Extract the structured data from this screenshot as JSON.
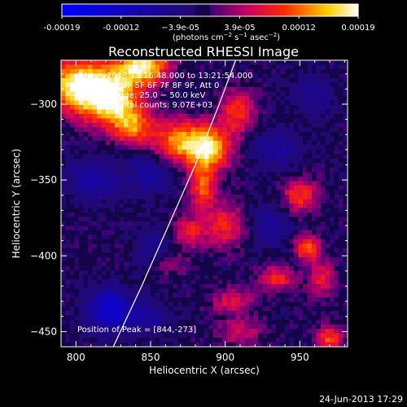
{
  "chart_data": {
    "type": "heatmap",
    "title": "Reconstructed RHESSI Image",
    "xlabel": "Heliocentric X (arcsec)",
    "ylabel": "Heliocentric Y (arcsec)",
    "xlim": [
      790,
      982
    ],
    "ylim": [
      -460,
      -271
    ],
    "xticks": [
      800,
      850,
      900,
      950
    ],
    "yticks": [
      -450,
      -400,
      -350,
      -300
    ],
    "xtick_labels": [
      "800",
      "850",
      "900",
      "950"
    ],
    "ytick_labels": [
      "−450",
      "−400",
      "−350",
      "−300"
    ],
    "colorbar": {
      "range": [
        -0.00019,
        0.00019
      ],
      "tick_labels": [
        "-0.00019",
        "-0.00012",
        "−3.9e-05",
        "3.9e-05",
        "0.00012",
        "0.00019"
      ],
      "unit_text": "(photons cm",
      "unit_exp1": "−2",
      "unit_mid": " s",
      "unit_exp2": "−1",
      "unit_end": " asec",
      "unit_exp3": "−2",
      "unit_close": ")"
    },
    "annotations": {
      "time": "24-Jun-2013 13:16:48.000 to 13:21:54.000",
      "detectors": "Detectors: 3F 5F 6F 7F 8F 9F, Att 0",
      "energy": "Energy Range: 25.0 − 50.0 keV",
      "counts": "Total counts: 9.07E+03",
      "peak": "Position of Peak = [844,-273]"
    },
    "hotspots": [
      {
        "x": 802,
        "y": -287,
        "v": 1.0,
        "sx": 16,
        "sy": 12
      },
      {
        "x": 824,
        "y": -297,
        "v": 0.95,
        "sx": 14,
        "sy": 12
      },
      {
        "x": 845,
        "y": -275,
        "v": 1.0,
        "sx": 12,
        "sy": 8
      },
      {
        "x": 838,
        "y": -315,
        "v": 0.6,
        "sx": 10,
        "sy": 8
      },
      {
        "x": 870,
        "y": -325,
        "v": 0.75,
        "sx": 14,
        "sy": 10
      },
      {
        "x": 890,
        "y": -330,
        "v": 0.8,
        "sx": 10,
        "sy": 10
      },
      {
        "x": 908,
        "y": -305,
        "v": 0.55,
        "sx": 8,
        "sy": 10
      },
      {
        "x": 885,
        "y": -355,
        "v": 0.6,
        "sx": 6,
        "sy": 10
      },
      {
        "x": 875,
        "y": -385,
        "v": 0.45,
        "sx": 8,
        "sy": 8
      },
      {
        "x": 900,
        "y": -380,
        "v": 0.5,
        "sx": 10,
        "sy": 10
      },
      {
        "x": 950,
        "y": -360,
        "v": 0.55,
        "sx": 8,
        "sy": 8
      },
      {
        "x": 955,
        "y": -395,
        "v": 0.65,
        "sx": 6,
        "sy": 6
      },
      {
        "x": 935,
        "y": -415,
        "v": 0.5,
        "sx": 8,
        "sy": 6
      },
      {
        "x": 965,
        "y": -415,
        "v": 0.45,
        "sx": 6,
        "sy": 8
      },
      {
        "x": 970,
        "y": -455,
        "v": 0.6,
        "sx": 6,
        "sy": 6
      },
      {
        "x": 905,
        "y": -430,
        "v": 0.4,
        "sx": 10,
        "sy": 6
      },
      {
        "x": 862,
        "y": -405,
        "v": 0.3,
        "sx": 8,
        "sy": 6
      },
      {
        "x": 910,
        "y": -450,
        "v": 0.35,
        "sx": 10,
        "sy": 6
      }
    ],
    "coldspots": [
      {
        "x": 822,
        "y": -435,
        "v": -0.6,
        "sx": 10,
        "sy": 10
      },
      {
        "x": 812,
        "y": -350,
        "v": -0.35,
        "sx": 14,
        "sy": 10
      },
      {
        "x": 850,
        "y": -345,
        "v": -0.35,
        "sx": 10,
        "sy": 10
      },
      {
        "x": 855,
        "y": -395,
        "v": -0.3,
        "sx": 10,
        "sy": 10
      },
      {
        "x": 935,
        "y": -330,
        "v": -0.3,
        "sx": 12,
        "sy": 10
      },
      {
        "x": 930,
        "y": -380,
        "v": -0.3,
        "sx": 10,
        "sy": 10
      },
      {
        "x": 960,
        "y": -295,
        "v": -0.25,
        "sx": 10,
        "sy": 10
      },
      {
        "x": 845,
        "y": -440,
        "v": -0.3,
        "sx": 12,
        "sy": 8
      }
    ],
    "limb_curve_x_at_y": [
      {
        "y": -271,
        "x": 907
      },
      {
        "y": -300,
        "x": 896
      },
      {
        "y": -340,
        "x": 880
      },
      {
        "y": -380,
        "x": 862
      },
      {
        "y": -420,
        "x": 844
      },
      {
        "y": -460,
        "x": 825
      }
    ]
  },
  "footer": {
    "timestamp": "24-Jun-2013 17:29"
  }
}
